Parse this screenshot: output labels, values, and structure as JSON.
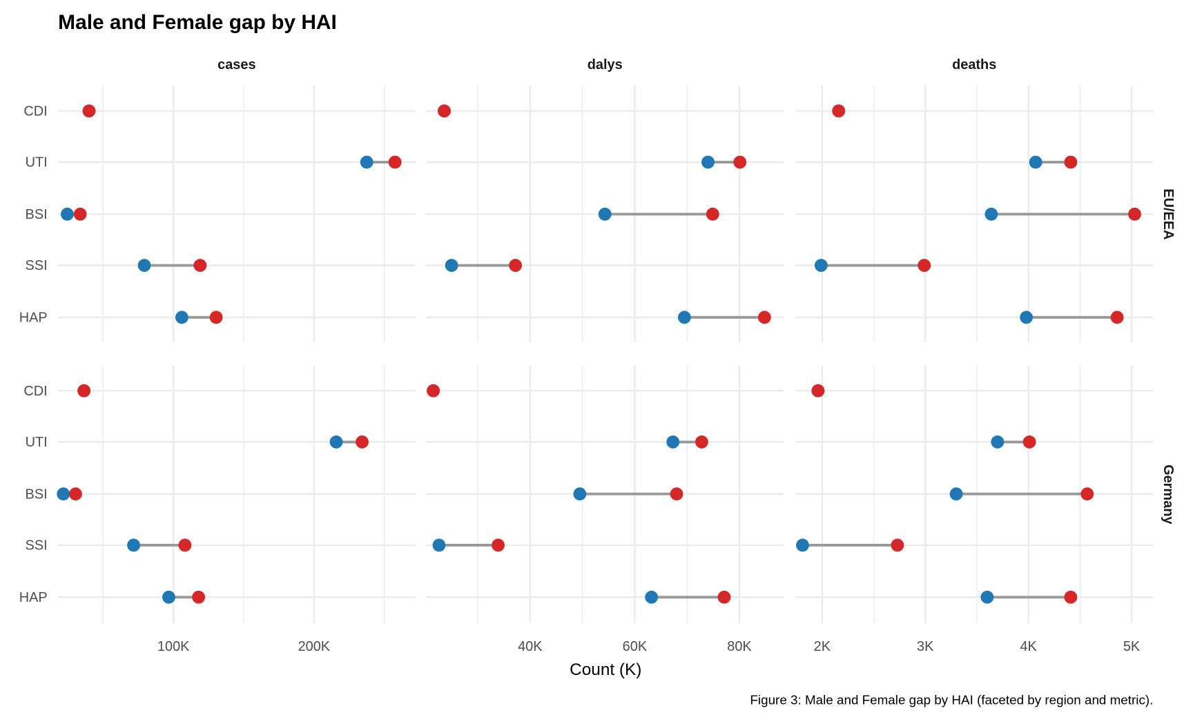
{
  "chart_data": {
    "type": "dumbbell",
    "title": "Male and Female gap by HAI",
    "xlabel": "Count (K)",
    "caption": "Figure 3: Male and Female gap by HAI (faceted by region and metric).",
    "colors": {
      "male": "#1f78b4",
      "female": "#d62728",
      "segment": "#999999",
      "grid": "#ebebeb"
    },
    "categories": [
      "CDI",
      "UTI",
      "BSI",
      "SSI",
      "HAP"
    ],
    "rows": [
      "EU/EEA",
      "Germany"
    ],
    "facets": [
      {
        "metric": "cases",
        "units": "thousands",
        "xlim": [
          18,
          272
        ],
        "major_ticks": [
          100,
          200
        ],
        "minor_ticks": [
          50,
          150,
          250
        ],
        "tick_labels": [
          "100K",
          "200K"
        ],
        "data": {
          "EU/EEA": {
            "male": [
              40,
              237.5,
              24.5,
              79.3,
              106
            ],
            "female": [
              40,
              257.6,
              33.7,
              119,
              130.4
            ]
          },
          "Germany": {
            "male": [
              36.4,
              215.8,
              21.7,
              71.7,
              96.7
            ],
            "female": [
              36.4,
              234.2,
              30.4,
              108.2,
              117.9
            ]
          }
        }
      },
      {
        "metric": "dalys",
        "units": "thousands",
        "xlim": [
          20.1,
          88.5
        ],
        "major_ticks": [
          40,
          60,
          80
        ],
        "minor_ticks": [
          30,
          50,
          70
        ],
        "tick_labels": [
          "40K",
          "60K",
          "80K"
        ],
        "data": {
          "EU/EEA": {
            "male": [
              23.6,
              74.0,
              54.3,
              25.0,
              69.5
            ],
            "female": [
              23.6,
              80.1,
              74.9,
              37.2,
              84.8
            ]
          },
          "Germany": {
            "male": [
              21.5,
              67.3,
              49.5,
              22.6,
              63.2
            ],
            "female": [
              21.5,
              72.8,
              68.0,
              33.9,
              77.1
            ]
          }
        }
      },
      {
        "metric": "deaths",
        "units": "thousands",
        "xlim": [
          1.74,
          5.21
        ],
        "major_ticks": [
          2,
          3,
          4,
          5
        ],
        "minor_ticks": [
          2.5,
          3.5,
          4.5
        ],
        "tick_labels": [
          "2K",
          "3K",
          "4K",
          "5K"
        ],
        "data": {
          "EU/EEA": {
            "male": [
              2.16,
              4.07,
              3.64,
              1.99,
              3.98
            ],
            "female": [
              2.16,
              4.41,
              5.03,
              2.99,
              4.86
            ]
          },
          "Germany": {
            "male": [
              1.96,
              3.7,
              3.3,
              1.81,
              3.6
            ],
            "female": [
              1.96,
              4.01,
              4.57,
              2.73,
              4.41
            ]
          }
        }
      }
    ]
  }
}
